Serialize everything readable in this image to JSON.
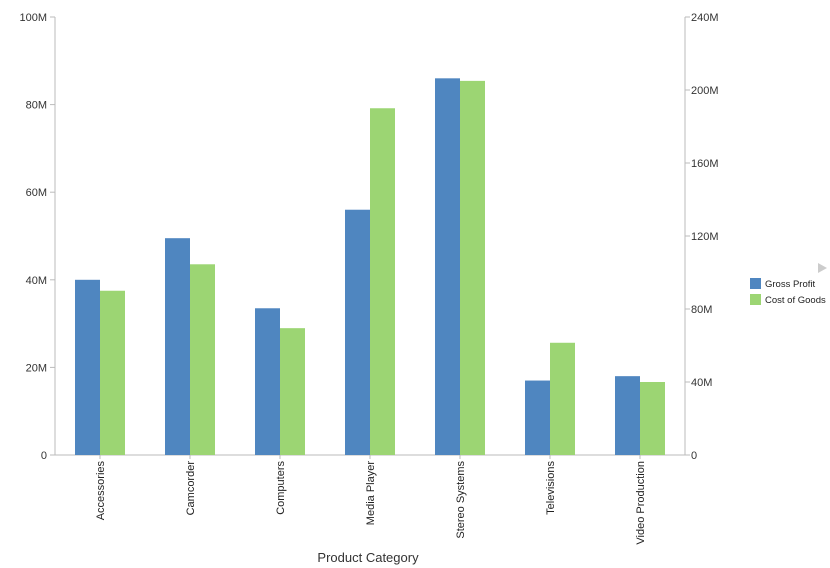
{
  "chart_data": {
    "type": "bar",
    "xlabel": "Product Category",
    "categories": [
      "Accessories",
      "Camcorder",
      "Computers",
      "Media Player",
      "Stereo Systems",
      "Televisions",
      "Video Production"
    ],
    "series": [
      {
        "name": "Gross Profit",
        "axis": "left",
        "color": "#4F86C0",
        "values": [
          40000000,
          49500000,
          33500000,
          56000000,
          86000000,
          17000000,
          18000000
        ]
      },
      {
        "name": "Cost of Goods",
        "axis": "right",
        "color": "#9CD573",
        "values": [
          90000000,
          104500000,
          69500000,
          190000000,
          205000000,
          61500000,
          40000000
        ]
      }
    ],
    "y_left": {
      "ylim": [
        0,
        100000000
      ],
      "ticks": [
        0,
        20000000,
        40000000,
        60000000,
        80000000,
        100000000
      ],
      "tick_labels": [
        "0",
        "20M",
        "40M",
        "60M",
        "80M",
        "100M"
      ]
    },
    "y_right": {
      "ylim": [
        0,
        240000000
      ],
      "ticks": [
        0,
        40000000,
        80000000,
        120000000,
        160000000,
        200000000,
        240000000
      ],
      "tick_labels": [
        "0",
        "40M",
        "80M",
        "120M",
        "160M",
        "200M",
        "240M"
      ]
    },
    "grid": false,
    "legend_position": "right",
    "legend_scroll_icon": "triangle-right-icon"
  }
}
